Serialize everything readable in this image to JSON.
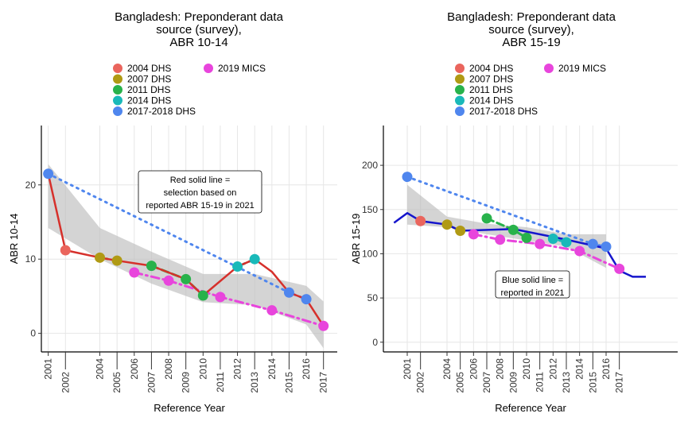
{
  "colors": {
    "dhs2004": "#ea655d",
    "dhs2007": "#b09a14",
    "dhs2011": "#28b24b",
    "dhs2014": "#19b9b9",
    "dhs2017": "#4f86ee",
    "mics2019": "#e845dc",
    "red_line": "#d6302b",
    "blue_line": "#1515cc",
    "ribbon": "#bdbdbd"
  },
  "chart_data": [
    {
      "type": "line",
      "title_lines": [
        "Bangladesh: Preponderant data",
        "source (survey),",
        "ABR 10-14"
      ],
      "xlabel": "Reference Year",
      "ylabel": "ABR 10-14",
      "xlim": [
        2000.6,
        2017.8
      ],
      "ylim": [
        -2.5,
        28
      ],
      "x_ticks": [
        "2001",
        "2002",
        "2004",
        "2005",
        "2006",
        "2007",
        "2008",
        "2009",
        "2010",
        "2011",
        "2012",
        "2013",
        "2014",
        "2015",
        "2016",
        "2017"
      ],
      "y_ticks": [
        "0",
        "10",
        "20"
      ],
      "legend": [
        {
          "label": "2004 DHS",
          "color_key": "dhs2004"
        },
        {
          "label": "2007 DHS",
          "color_key": "dhs2007"
        },
        {
          "label": "2011 DHS",
          "color_key": "dhs2011"
        },
        {
          "label": "2014 DHS",
          "color_key": "dhs2014"
        },
        {
          "label": "2017-2018 DHS",
          "color_key": "dhs2017"
        },
        {
          "label": "2019 MICS",
          "color_key": "mics2019"
        }
      ],
      "annotation": [
        "Red solid line =",
        "selection based on",
        "reported ABR 15-19 in 2021"
      ],
      "series": [
        {
          "source": "2004 DHS",
          "color_key": "dhs2004",
          "style": "dotted",
          "x": [
            2002
          ],
          "y": [
            11.2
          ]
        },
        {
          "source": "2007 DHS",
          "color_key": "dhs2007",
          "style": "dotted",
          "x": [
            2004,
            2005
          ],
          "y": [
            10.2,
            9.8
          ]
        },
        {
          "source": "2011 DHS",
          "color_key": "dhs2011",
          "style": "dashed",
          "x": [
            2007,
            2009,
            2010
          ],
          "y": [
            9.1,
            7.3,
            5.1
          ]
        },
        {
          "source": "2014 DHS",
          "color_key": "dhs2014",
          "style": "dotted",
          "x": [
            2012,
            2013
          ],
          "y": [
            9.0,
            10.0
          ]
        },
        {
          "source": "2017-2018 DHS",
          "color_key": "dhs2017",
          "style": "dotted",
          "x": [
            2001,
            2015,
            2016
          ],
          "y": [
            21.5,
            5.5,
            4.6
          ]
        },
        {
          "source": "2019 MICS",
          "color_key": "mics2019",
          "style": "dashdot",
          "x": [
            2006,
            2008,
            2011,
            2014,
            2017
          ],
          "y": [
            8.2,
            7.1,
            4.9,
            3.1,
            1.0
          ]
        }
      ],
      "selection_line": {
        "color_key": "red_line",
        "x": [
          2001,
          2002,
          2004,
          2005,
          2007,
          2009,
          2010,
          2012,
          2013,
          2014,
          2015,
          2016,
          2017
        ],
        "y": [
          21.5,
          11.2,
          10.2,
          9.8,
          9.1,
          7.3,
          5.1,
          9.0,
          10.0,
          8.3,
          5.5,
          4.6,
          1.0
        ]
      },
      "ribbon": {
        "x": [
          2001,
          2004,
          2007,
          2010,
          2013,
          2016,
          2017
        ],
        "lower": [
          14.2,
          10.0,
          6.7,
          4.2,
          3.8,
          1.2,
          -2.0
        ],
        "upper": [
          22.8,
          14.2,
          11.0,
          8.0,
          8.0,
          6.4,
          4.3
        ]
      }
    },
    {
      "type": "line",
      "title_lines": [
        "Bangladesh: Preponderant data",
        "source (survey),",
        "ABR 15-19"
      ],
      "xlabel": "Reference Year",
      "ylabel": "ABR 15-19",
      "xlim": [
        1999.2,
        2021.4
      ],
      "ylim": [
        -11,
        245
      ],
      "x_ticks": [
        "2001",
        "2002",
        "2004",
        "2005",
        "2006",
        "2007",
        "2008",
        "2009",
        "2010",
        "2011",
        "2012",
        "2013",
        "2014",
        "2015",
        "2016",
        "2017"
      ],
      "y_ticks": [
        "0",
        "50",
        "100",
        "150",
        "200"
      ],
      "legend": [
        {
          "label": "2004 DHS",
          "color_key": "dhs2004"
        },
        {
          "label": "2007 DHS",
          "color_key": "dhs2007"
        },
        {
          "label": "2011 DHS",
          "color_key": "dhs2011"
        },
        {
          "label": "2014 DHS",
          "color_key": "dhs2014"
        },
        {
          "label": "2017-2018 DHS",
          "color_key": "dhs2017"
        },
        {
          "label": "2019 MICS",
          "color_key": "mics2019"
        }
      ],
      "annotation": [
        "Blue solid line =",
        "reported in 2021"
      ],
      "series": [
        {
          "source": "2004 DHS",
          "color_key": "dhs2004",
          "style": "dotted",
          "x": [
            2002
          ],
          "y": [
            137
          ]
        },
        {
          "source": "2007 DHS",
          "color_key": "dhs2007",
          "style": "dotted",
          "x": [
            2004,
            2005
          ],
          "y": [
            133,
            126
          ]
        },
        {
          "source": "2011 DHS",
          "color_key": "dhs2011",
          "style": "dashed",
          "x": [
            2007,
            2009,
            2010
          ],
          "y": [
            140,
            127,
            118
          ]
        },
        {
          "source": "2014 DHS",
          "color_key": "dhs2014",
          "style": "dotted",
          "x": [
            2012,
            2013
          ],
          "y": [
            117,
            113
          ]
        },
        {
          "source": "2017-2018 DHS",
          "color_key": "dhs2017",
          "style": "dotted",
          "x": [
            2001,
            2015,
            2016
          ],
          "y": [
            187,
            111,
            108
          ]
        },
        {
          "source": "2019 MICS",
          "color_key": "mics2019",
          "style": "dashdot",
          "x": [
            2006,
            2008,
            2011,
            2014,
            2017
          ],
          "y": [
            122,
            116,
            111,
            103,
            83
          ]
        }
      ],
      "selection_line": {
        "color_key": "blue_line",
        "x": [
          2000,
          2001,
          2002,
          2004,
          2005,
          2009,
          2013,
          2016,
          2017,
          2018,
          2019
        ],
        "y": [
          135,
          146,
          137,
          133,
          126,
          128,
          116,
          106,
          81,
          74,
          74
        ]
      },
      "ribbon": {
        "x": [
          2001,
          2004,
          2007,
          2010,
          2013,
          2016
        ],
        "lower": [
          133,
          130,
          122,
          115,
          108,
          84
        ],
        "upper": [
          178,
          142,
          134,
          130,
          122,
          122
        ]
      }
    }
  ]
}
